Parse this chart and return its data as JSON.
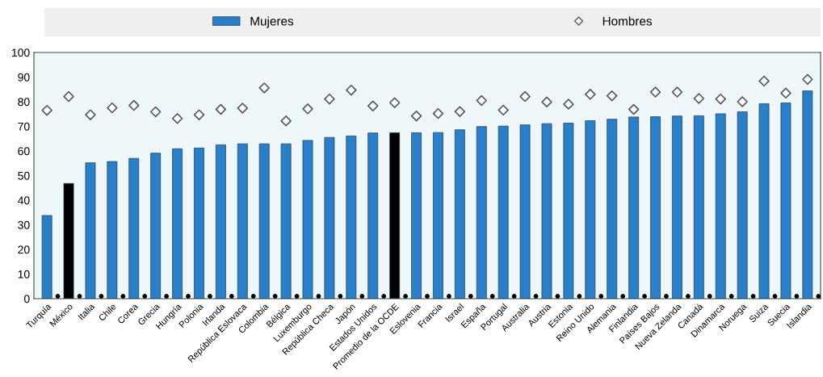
{
  "chart_data": {
    "type": "bar",
    "categories": [
      "Turquía",
      "México",
      "Italia",
      "Chile",
      "Corea",
      "Grecia",
      "Hungría",
      "Polonia",
      "Irlanda",
      "República Eslovaca",
      "Colombia",
      "Bélgica",
      "Luxemburgo",
      "República Checa",
      "Japón",
      "Estados Unidos",
      "Promedio de la OCDE",
      "Eslovenia",
      "Francia",
      "Israel",
      "España",
      "Portugal",
      "Australia",
      "Austria",
      "Estonia",
      "Reino Unido",
      "Alemania",
      "Finlandia",
      "Países Bajos",
      "Nueva Zelanda",
      "Canadá",
      "Dinamarca",
      "Noruega",
      "Suiza",
      "Suecia",
      "Islandia"
    ],
    "series": [
      {
        "name": "Mujeres",
        "color": "#2a7fc9",
        "colors": [
          "#2a7fc9",
          "#000000",
          "#2a7fc9",
          "#2a7fc9",
          "#2a7fc9",
          "#2a7fc9",
          "#2a7fc9",
          "#2a7fc9",
          "#2a7fc9",
          "#2a7fc9",
          "#2a7fc9",
          "#2a7fc9",
          "#2a7fc9",
          "#2a7fc9",
          "#2a7fc9",
          "#2a7fc9",
          "#000000",
          "#2a7fc9",
          "#2a7fc9",
          "#2a7fc9",
          "#2a7fc9",
          "#2a7fc9",
          "#2a7fc9",
          "#2a7fc9",
          "#2a7fc9",
          "#2a7fc9",
          "#2a7fc9",
          "#2a7fc9",
          "#2a7fc9",
          "#2a7fc9",
          "#2a7fc9",
          "#2a7fc9",
          "#2a7fc9",
          "#2a7fc9",
          "#2a7fc9",
          "#2a7fc9"
        ],
        "values": [
          33.8,
          46.8,
          55.2,
          55.7,
          57,
          59.1,
          60.9,
          61.2,
          62.5,
          62.9,
          62.9,
          62.9,
          64.3,
          65.5,
          66.1,
          67.3,
          67.4,
          67.4,
          67.5,
          68.6,
          69.9,
          70.1,
          70.6,
          71.1,
          71.3,
          72.3,
          72.9,
          73.8,
          73.9,
          74.2,
          74.3,
          75.1,
          75.9,
          79.2,
          79.5,
          84.4
        ]
      },
      {
        "name": "Hombres",
        "type": "scatter",
        "color": "#595959",
        "marker": "diamond",
        "values": [
          76.5,
          82.1,
          74.7,
          77.5,
          78.5,
          75.9,
          73.2,
          74.7,
          76.9,
          77.4,
          85.6,
          72.2,
          77.1,
          81.1,
          84.7,
          78.3,
          79.6,
          74.2,
          75.2,
          76,
          80.5,
          76.6,
          82.1,
          79.9,
          79,
          83,
          82.4,
          76.9,
          83.9,
          83.9,
          81.3,
          81.1,
          80,
          88.4,
          83.5,
          89.1
        ]
      },
      {
        "type": "scatter",
        "color": "#000000",
        "marker": "circle",
        "values": [
          1,
          1,
          1,
          1,
          1,
          1,
          1,
          1,
          1,
          1,
          1,
          1,
          1,
          1,
          1,
          1,
          1,
          1,
          1,
          1,
          1,
          1,
          1,
          1,
          1,
          1,
          1,
          1,
          1,
          1,
          1,
          1,
          1,
          1,
          1,
          1
        ]
      }
    ],
    "ylim": [
      0,
      100
    ],
    "yticks": [
      0,
      10,
      20,
      30,
      40,
      50,
      60,
      70,
      80,
      90,
      100
    ],
    "grid": false,
    "legend": "top"
  }
}
